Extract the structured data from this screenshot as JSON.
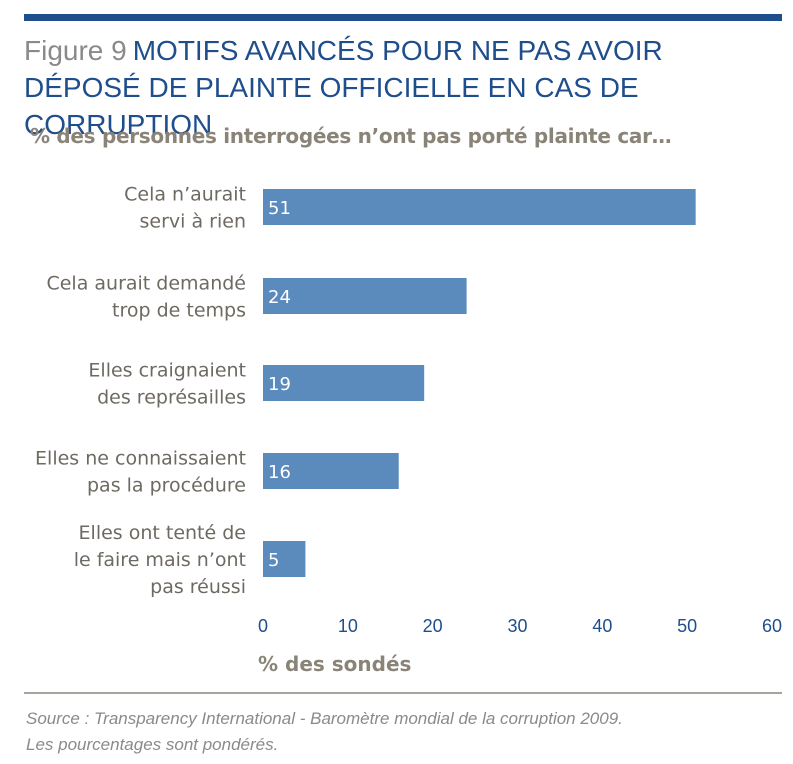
{
  "figure": {
    "label": "Figure 9",
    "title": "MOTIFS AVANCÉS POUR NE PAS AVOIR DÉPOSÉ DE PLAINTE OFFICIELLE EN CAS DE CORRUPTION"
  },
  "colors": {
    "accent": "#1f4e8c",
    "bar": "#5b8bbd",
    "muted_text": "#8a8478"
  },
  "chart_data": {
    "type": "bar",
    "orientation": "horizontal",
    "subtitle": "% des personnes interrogées n’ont pas porté plainte car…",
    "categories": [
      [
        "Cela n’aurait",
        "servi à rien"
      ],
      [
        "Cela aurait demandé",
        "trop de temps"
      ],
      [
        "Elles craignaient",
        "des représailles"
      ],
      [
        "Elles ne connaissaient",
        "pas la procédure"
      ],
      [
        "Elles ont tenté de",
        "le faire mais n’ont",
        "pas réussi"
      ]
    ],
    "values": [
      51,
      24,
      19,
      16,
      5
    ],
    "xlabel": "% des sondés",
    "xlim": [
      0,
      60
    ],
    "xticks": [
      0,
      10,
      20,
      30,
      40,
      50,
      60
    ],
    "grid": false,
    "legend": "none"
  },
  "source": {
    "line1": "Source : Transparency International - Baromètre mondial de la corruption 2009.",
    "line2": "Les pourcentages sont pondérés."
  }
}
